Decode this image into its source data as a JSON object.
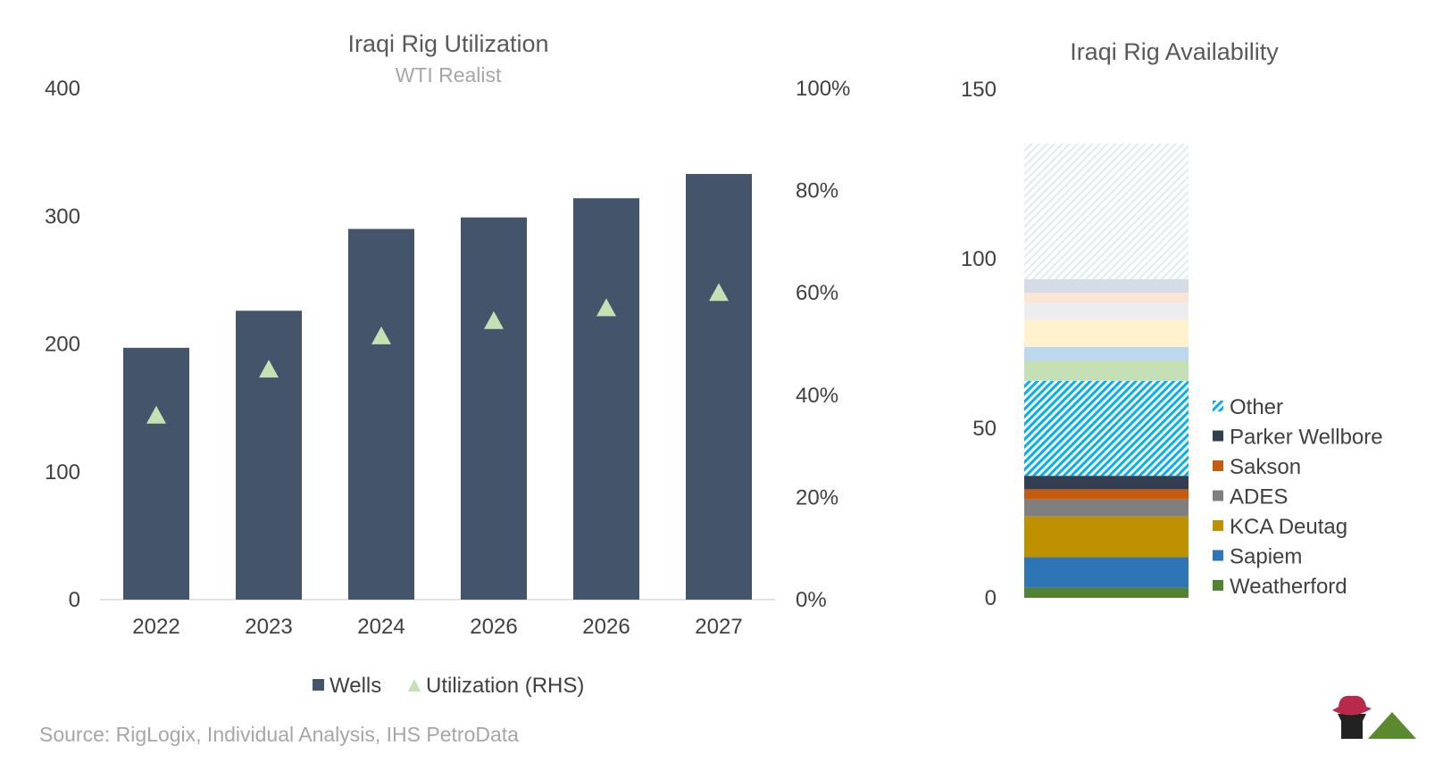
{
  "colors": {
    "wells": "#44546A",
    "utilization": "#C5E0B4",
    "axis_text": "#404040",
    "subtitle": "#A6A6A6",
    "source": "#A6A6A6"
  },
  "chart_data": [
    {
      "type": "bar",
      "title": "Iraqi Rig Utilization",
      "subtitle": "WTI Realist",
      "categories": [
        "2022",
        "2023",
        "2024",
        "2026",
        "2026",
        "2027"
      ],
      "series": [
        {
          "name": "Wells",
          "axis": "left",
          "kind": "bar",
          "color": "#44546A",
          "values": [
            197,
            226,
            290,
            299,
            314,
            333
          ]
        },
        {
          "name": "Utilization (RHS)",
          "axis": "right",
          "kind": "marker-triangle",
          "color": "#C5E0B4",
          "values": [
            0.36,
            0.45,
            0.515,
            0.545,
            0.57,
            0.6
          ]
        }
      ],
      "ylim_left": [
        0,
        400
      ],
      "yticks_left": [
        0,
        100,
        200,
        300,
        400
      ],
      "ylim_right": [
        0,
        1.0
      ],
      "yticks_right": [
        0,
        0.2,
        0.4,
        0.6,
        0.8,
        1.0
      ],
      "ytick_labels_right": [
        "0%",
        "20%",
        "40%",
        "60%",
        "80%",
        "100%"
      ],
      "legend": [
        "Wells",
        "Utilization (RHS)"
      ],
      "legend_position": "bottom",
      "grid": false
    },
    {
      "type": "bar",
      "stacked": true,
      "title": "Iraqi Rig Availability",
      "categories": [
        ""
      ],
      "ylim": [
        0,
        150
      ],
      "yticks": [
        0,
        50,
        100,
        150
      ],
      "legend_position": "right",
      "segments": [
        {
          "name": "Weatherford",
          "value": 3,
          "color": "#548235",
          "legend": true
        },
        {
          "name": "Sapiem",
          "value": 9,
          "color": "#2E75B6",
          "legend": true
        },
        {
          "name": "KCA Deutag",
          "value": 12,
          "color": "#BF9000",
          "legend": true
        },
        {
          "name": "ADES",
          "value": 5,
          "color": "#7F7F7F",
          "legend": true
        },
        {
          "name": "Sakson",
          "value": 3,
          "color": "#C55A11",
          "legend": true
        },
        {
          "name": "Parker Wellbore",
          "value": 4,
          "color": "#333F50",
          "legend": true
        },
        {
          "name": "Other",
          "value": 28,
          "color": "#00B0F0",
          "pattern": "hatch",
          "legend": true
        },
        {
          "name": "",
          "value": 6,
          "color": "#C5E0B4",
          "legend": false
        },
        {
          "name": "",
          "value": 4,
          "color": "#BDD7EE",
          "legend": false
        },
        {
          "name": "",
          "value": 8,
          "color": "#FFF2CC",
          "legend": false
        },
        {
          "name": "",
          "value": 5,
          "color": "#EDEDED",
          "legend": false
        },
        {
          "name": "",
          "value": 3,
          "color": "#FBE5D6",
          "legend": false
        },
        {
          "name": "",
          "value": 4,
          "color": "#D6DCE5",
          "legend": false
        },
        {
          "name": "",
          "value": 40,
          "color": "#DEEBF7",
          "pattern": "hatch-light",
          "legend": false
        }
      ],
      "legend_order": [
        "Other",
        "Parker Wellbore",
        "Sakson",
        "ADES",
        "KCA Deutag",
        "Sapiem",
        "Weatherford"
      ]
    }
  ],
  "source": "Source: RigLogix, Individual Analysis, IHS PetroData"
}
